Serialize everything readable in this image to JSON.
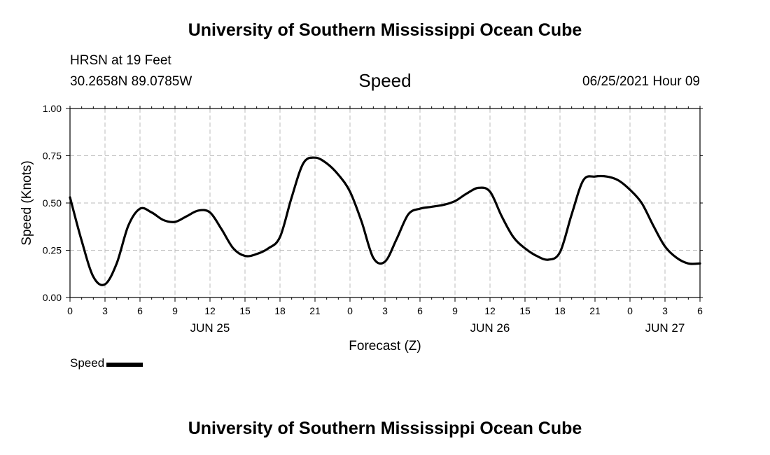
{
  "header": {
    "title": "University of Southern Mississippi Ocean Cube",
    "station": "HRSN at 19 Feet",
    "coordinates": "30.2658N  89.0785W",
    "subtitle": "Speed",
    "datetime": "06/25/2021 Hour 09"
  },
  "footer": {
    "title": "University of Southern Mississippi Ocean Cube"
  },
  "legend": {
    "label": "Speed"
  },
  "chart_data": {
    "type": "line",
    "title": "Speed",
    "xlabel": "Forecast (Z)",
    "ylabel": "Speed (Knots)",
    "xlim": [
      0,
      54
    ],
    "ylim": [
      0,
      1
    ],
    "x_tick_labels": [
      "0",
      "3",
      "6",
      "9",
      "12",
      "15",
      "18",
      "21",
      "0",
      "3",
      "6",
      "9",
      "12",
      "15",
      "18",
      "21",
      "0",
      "3",
      "6"
    ],
    "y_tick_labels": [
      "0.00",
      "0.25",
      "0.50",
      "0.75",
      "1.00"
    ],
    "date_labels": [
      {
        "label": "JUN 25",
        "at": 12
      },
      {
        "label": "JUN 26",
        "at": 36
      },
      {
        "label": "JUN 27",
        "at": 51
      }
    ],
    "grid": true,
    "line_color": "#000000",
    "series": [
      {
        "name": "Speed",
        "x": [
          0,
          1,
          2,
          3,
          4,
          5,
          6,
          7,
          8,
          9,
          10,
          11,
          12,
          13,
          14,
          15,
          16,
          17,
          18,
          19,
          20,
          21,
          22,
          23,
          24,
          25,
          26,
          27,
          28,
          29,
          30,
          31,
          32,
          33,
          34,
          35,
          36,
          37,
          38,
          39,
          40,
          41,
          42,
          43,
          44,
          45,
          46,
          47,
          48,
          49,
          50,
          51,
          52,
          53,
          54
        ],
        "values": [
          0.53,
          0.3,
          0.11,
          0.07,
          0.18,
          0.38,
          0.47,
          0.45,
          0.41,
          0.4,
          0.43,
          0.46,
          0.45,
          0.36,
          0.26,
          0.22,
          0.23,
          0.26,
          0.32,
          0.53,
          0.71,
          0.74,
          0.71,
          0.65,
          0.56,
          0.4,
          0.21,
          0.19,
          0.31,
          0.44,
          0.47,
          0.48,
          0.49,
          0.51,
          0.55,
          0.58,
          0.56,
          0.43,
          0.32,
          0.26,
          0.22,
          0.2,
          0.24,
          0.44,
          0.62,
          0.64,
          0.64,
          0.62,
          0.57,
          0.5,
          0.38,
          0.27,
          0.21,
          0.18,
          0.18
        ]
      }
    ]
  }
}
